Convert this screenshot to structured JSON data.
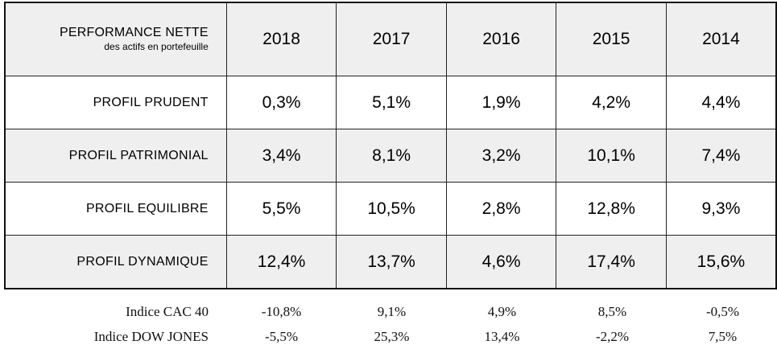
{
  "header": {
    "title": "PERFORMANCE NETTE",
    "subtitle": "des actifs en portefeuille",
    "years": [
      "2018",
      "2017",
      "2016",
      "2015",
      "2014"
    ]
  },
  "rows": [
    {
      "label": "PROFIL PRUDENT",
      "values": [
        "0,3%",
        "5,1%",
        "1,9%",
        "4,2%",
        "4,4%"
      ]
    },
    {
      "label": "PROFIL PATRIMONIAL",
      "values": [
        "3,4%",
        "8,1%",
        "3,2%",
        "10,1%",
        "7,4%"
      ]
    },
    {
      "label": "PROFIL EQUILIBRE",
      "values": [
        "5,5%",
        "10,5%",
        "2,8%",
        "12,8%",
        "9,3%"
      ]
    },
    {
      "label": "PROFIL DYNAMIQUE",
      "values": [
        "12,4%",
        "13,7%",
        "4,6%",
        "17,4%",
        "15,6%"
      ]
    }
  ],
  "indices": [
    {
      "label": "Indice CAC 40",
      "values": [
        "-10,8%",
        "9,1%",
        "4,9%",
        "8,5%",
        "-0,5%"
      ]
    },
    {
      "label": "Indice DOW JONES",
      "values": [
        "-5,5%",
        "25,3%",
        "13,4%",
        "-2,2%",
        "7,5%"
      ]
    }
  ],
  "colors": {
    "shaded_row": "#efefef",
    "border": "#222222"
  }
}
